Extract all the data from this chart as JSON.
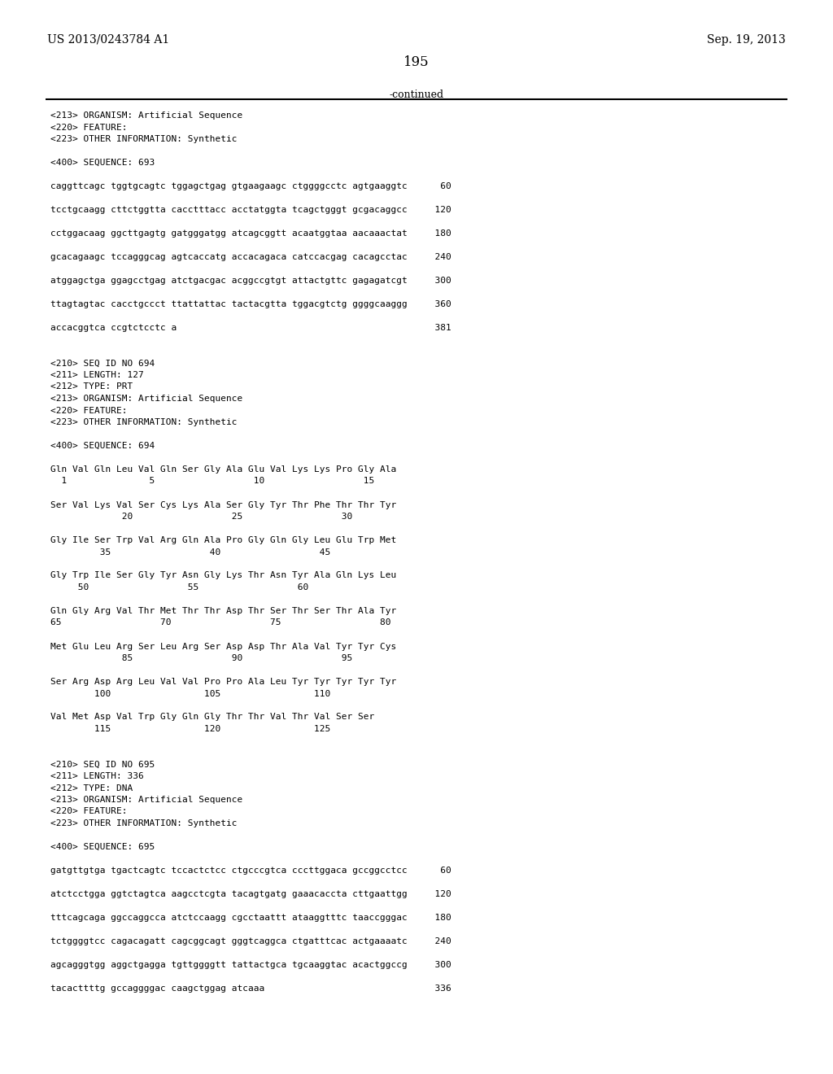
{
  "header_left": "US 2013/0243784 A1",
  "header_right": "Sep. 19, 2013",
  "page_number": "195",
  "continued_text": "-continued",
  "background_color": "#ffffff",
  "text_color": "#000000",
  "content_lines": [
    "<213> ORGANISM: Artificial Sequence",
    "<220> FEATURE:",
    "<223> OTHER INFORMATION: Synthetic",
    "",
    "<400> SEQUENCE: 693",
    "",
    "caggttcagc tggtgcagtc tggagctgag gtgaagaagc ctggggcctc agtgaaggtc      60",
    "",
    "tcctgcaagg cttctggtta cacctttacc acctatggta tcagctgggt gcgacaggcc     120",
    "",
    "cctggacaag ggcttgagtg gatgggatgg atcagcggtt acaatggtaa aacaaactat     180",
    "",
    "gcacagaagc tccagggcag agtcaccatg accacagaca catccacgag cacagcctac     240",
    "",
    "atggagctga ggagcctgag atctgacgac acggccgtgt attactgttc gagagatcgt     300",
    "",
    "ttagtagtac cacctgccct ttattattac tactacgtta tggacgtctg ggggcaaggg     360",
    "",
    "accacggtca ccgtctcctc a                                               381",
    "",
    "",
    "<210> SEQ ID NO 694",
    "<211> LENGTH: 127",
    "<212> TYPE: PRT",
    "<213> ORGANISM: Artificial Sequence",
    "<220> FEATURE:",
    "<223> OTHER INFORMATION: Synthetic",
    "",
    "<400> SEQUENCE: 694",
    "",
    "Gln Val Gln Leu Val Gln Ser Gly Ala Glu Val Lys Lys Pro Gly Ala",
    "  1               5                  10                  15",
    "",
    "Ser Val Lys Val Ser Cys Lys Ala Ser Gly Tyr Thr Phe Thr Thr Tyr",
    "             20                  25                  30",
    "",
    "Gly Ile Ser Trp Val Arg Gln Ala Pro Gly Gln Gly Leu Glu Trp Met",
    "         35                  40                  45",
    "",
    "Gly Trp Ile Ser Gly Tyr Asn Gly Lys Thr Asn Tyr Ala Gln Lys Leu",
    "     50                  55                  60",
    "",
    "Gln Gly Arg Val Thr Met Thr Thr Asp Thr Ser Thr Ser Thr Ala Tyr",
    "65                  70                  75                  80",
    "",
    "Met Glu Leu Arg Ser Leu Arg Ser Asp Asp Thr Ala Val Tyr Tyr Cys",
    "             85                  90                  95",
    "",
    "Ser Arg Asp Arg Leu Val Val Pro Pro Ala Leu Tyr Tyr Tyr Tyr Tyr",
    "        100                 105                 110",
    "",
    "Val Met Asp Val Trp Gly Gln Gly Thr Thr Val Thr Val Ser Ser",
    "        115                 120                 125",
    "",
    "",
    "<210> SEQ ID NO 695",
    "<211> LENGTH: 336",
    "<212> TYPE: DNA",
    "<213> ORGANISM: Artificial Sequence",
    "<220> FEATURE:",
    "<223> OTHER INFORMATION: Synthetic",
    "",
    "<400> SEQUENCE: 695",
    "",
    "gatgttgtga tgactcagtc tccactctcc ctgcccgtca cccttggaca gccggcctcc      60",
    "",
    "atctcctgga ggtctagtca aagcctcgta tacagtgatg gaaacaccta cttgaattgg     120",
    "",
    "tttcagcaga ggccaggcca atctccaagg cgcctaattt ataaggtttc taaccgggac     180",
    "",
    "tctggggtcc cagacagatt cagcggcagt gggtcaggca ctgatttcac actgaaaatc     240",
    "",
    "agcagggtgg aggctgagga tgttggggtt tattactgca tgcaaggtac acactggccg     300",
    "",
    "tacacttttg gccaggggac caagctggag atcaaa                               336"
  ]
}
